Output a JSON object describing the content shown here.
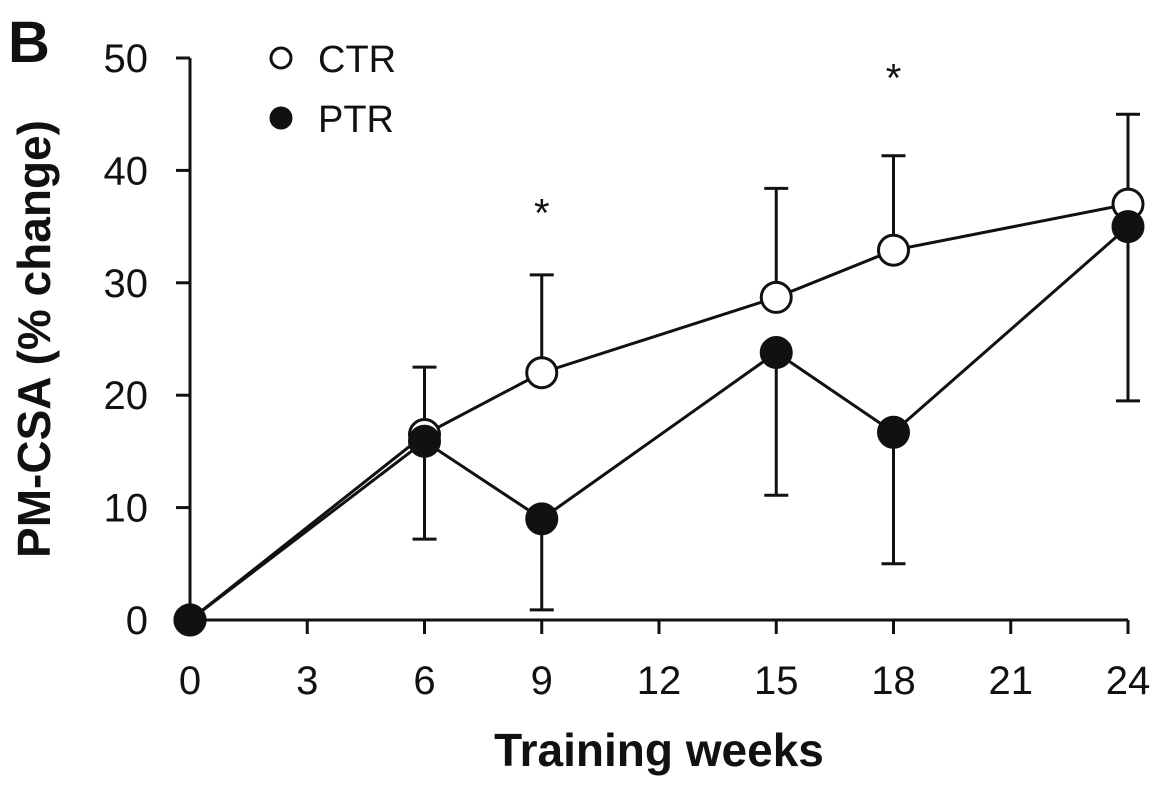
{
  "chart_data": {
    "type": "line",
    "panel_label": "B",
    "title": "",
    "xlabel": "Training weeks",
    "ylabel": "PM-CSA (% change)",
    "xlim": [
      0,
      24
    ],
    "ylim": [
      0,
      50
    ],
    "xticks": [
      0,
      3,
      6,
      9,
      12,
      15,
      18,
      21,
      24
    ],
    "yticks": [
      0,
      10,
      20,
      30,
      40,
      50
    ],
    "grid": false,
    "legend_position": "top-left",
    "series": [
      {
        "name": "CTR",
        "marker": "open-circle",
        "color": "#111111",
        "fill": "#ffffff",
        "x": [
          0,
          6,
          9,
          15,
          18,
          24
        ],
        "y": [
          0,
          16.5,
          22,
          28.7,
          32.9,
          37
        ],
        "error_upper": [
          0,
          6,
          8.7,
          9.7,
          8.4,
          8
        ],
        "error_lower": [
          0,
          0,
          0,
          0,
          0,
          0
        ]
      },
      {
        "name": "PTR",
        "marker": "filled-circle",
        "color": "#111111",
        "fill": "#111111",
        "x": [
          0,
          6,
          9,
          15,
          18,
          24
        ],
        "y": [
          0,
          15.9,
          9,
          23.8,
          16.7,
          35
        ],
        "error_upper": [
          0,
          0,
          0,
          0,
          0,
          0
        ],
        "error_lower": [
          0,
          8.7,
          8.1,
          12.7,
          11.7,
          15.5
        ]
      }
    ],
    "annotations": [
      {
        "x": 9,
        "y": 35,
        "text": "*"
      },
      {
        "x": 18,
        "y": 47,
        "text": "*"
      }
    ]
  }
}
